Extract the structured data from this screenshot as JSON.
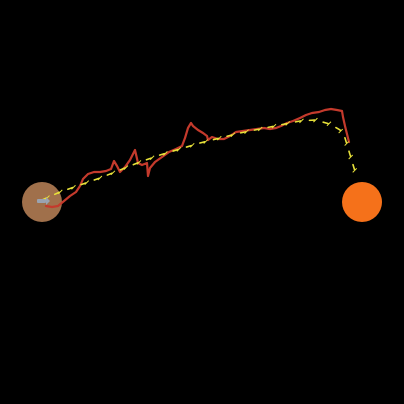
{
  "scene": {
    "background": "#000000",
    "start_marker": {
      "label": "",
      "color": "#a0704b",
      "icon": "agent-arrow-icon",
      "icon_color": "#9aa3b0"
    },
    "goal_marker": {
      "label": "",
      "color": "#f5711a"
    },
    "actual_path": {
      "color": "#c43a2c",
      "style": "solid"
    },
    "planned_path": {
      "color": "#e8e23a",
      "style": "dashed",
      "tick_marks": "cross"
    }
  }
}
